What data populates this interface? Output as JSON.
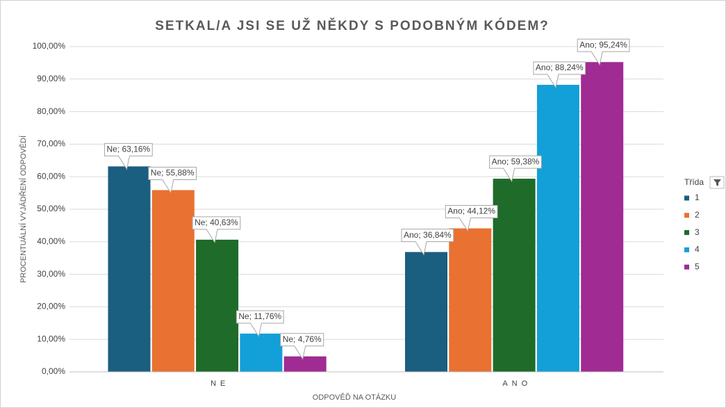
{
  "chart_data": {
    "type": "bar",
    "title": "SETKAL/A JSI SE UŽ NĚKDY S PODOBNÝM KÓDEM?",
    "x_label": "ODPOVĚĎ NA OTÁZKU",
    "y_label": "PROCENTUÁLNÍ VYJÁDŘENÍ ODPOVĚDÍ",
    "legend_title": "Třída",
    "legend": "right",
    "grid": true,
    "categories": [
      "NE",
      "ANO"
    ],
    "series": [
      {
        "name": "1",
        "color": "#1a5e80",
        "values": [
          63.16,
          36.84
        ],
        "value_labels": [
          "Ne; 63,16%",
          "Ano; 36,84%"
        ]
      },
      {
        "name": "2",
        "color": "#e97132",
        "values": [
          55.88,
          44.12
        ],
        "value_labels": [
          "Ne; 55,88%",
          "Ano; 44,12%"
        ]
      },
      {
        "name": "3",
        "color": "#1e6b2a",
        "values": [
          40.63,
          59.38
        ],
        "value_labels": [
          "Ne; 40,63%",
          "Ano; 59,38%"
        ]
      },
      {
        "name": "4",
        "color": "#139fd8",
        "values": [
          11.76,
          88.24
        ],
        "value_labels": [
          "Ne; 11,76%",
          "Ano; 88,24%"
        ]
      },
      {
        "name": "5",
        "color": "#a02b93",
        "values": [
          4.76,
          95.24
        ],
        "value_labels": [
          "Ne; 4,76%",
          "Ano; 95,24%"
        ]
      }
    ],
    "ylim": [
      0,
      100
    ],
    "yticks": [
      {
        "value": 0,
        "label": "0,00%"
      },
      {
        "value": 10,
        "label": "10,00%"
      },
      {
        "value": 20,
        "label": "20,00%"
      },
      {
        "value": 30,
        "label": "30,00%"
      },
      {
        "value": 40,
        "label": "40,00%"
      },
      {
        "value": 50,
        "label": "50,00%"
      },
      {
        "value": 60,
        "label": "60,00%"
      },
      {
        "value": 70,
        "label": "70,00%"
      },
      {
        "value": 80,
        "label": "80,00%"
      },
      {
        "value": 90,
        "label": "90,00%"
      },
      {
        "value": 100,
        "label": "100,00%"
      }
    ]
  }
}
